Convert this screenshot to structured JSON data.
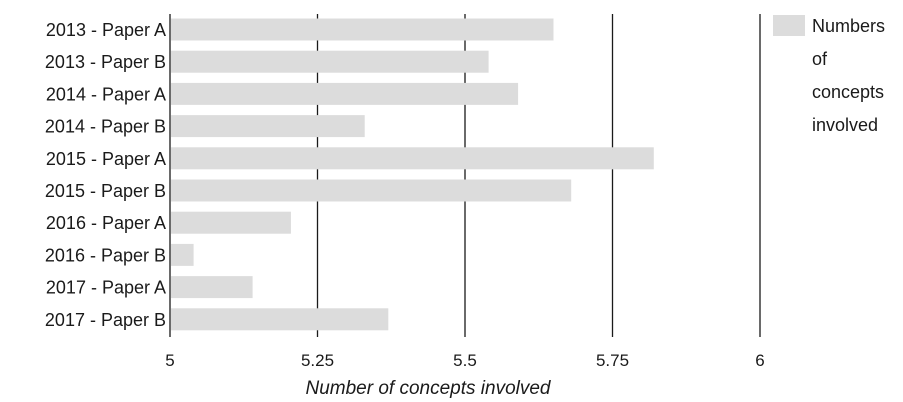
{
  "chart_data": {
    "type": "bar",
    "orientation": "horizontal",
    "categories": [
      "2013 - Paper A",
      "2013 - Paper B",
      "2014 - Paper A",
      "2014 - Paper B",
      "2015 - Paper A",
      "2015 - Paper B",
      "2016 - Paper A",
      "2016 - Paper B",
      "2017 - Paper A",
      "2017 - Paper B"
    ],
    "series": [
      {
        "name": "Numbers of concepts involved",
        "values": [
          5.65,
          5.54,
          5.59,
          5.33,
          5.82,
          5.68,
          5.205,
          5.04,
          5.14,
          5.37
        ],
        "color": "#dcdcdc"
      }
    ],
    "title": "",
    "xlabel": "Number of concepts involved",
    "ylabel": "",
    "xlim": [
      5,
      6
    ],
    "xticks": [
      5,
      5.25,
      5.5,
      5.75,
      6
    ],
    "xtick_labels": [
      "5",
      "5.25",
      "5.5",
      "5.75",
      "6"
    ],
    "grid": true,
    "legend": {
      "position": "top-right",
      "lines": [
        "Numbers",
        "of",
        "concepts",
        "involved"
      ]
    }
  }
}
